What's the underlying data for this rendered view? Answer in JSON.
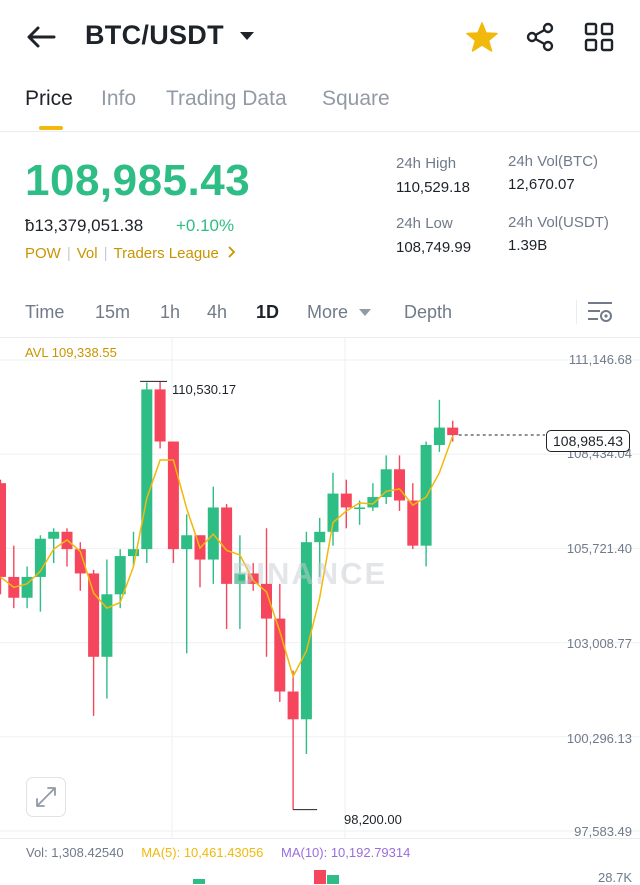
{
  "header": {
    "title": "BTC/USDT",
    "back_icon": "arrow-left-icon",
    "favorite_icon": "star-icon",
    "share_icon": "share-icon",
    "grid_icon": "grid-icon",
    "favorite_color": "#f0b90b"
  },
  "tabs": [
    {
      "label": "Price",
      "active": true
    },
    {
      "label": "Info",
      "active": false
    },
    {
      "label": "Trading Data",
      "active": false
    },
    {
      "label": "Square",
      "active": false
    }
  ],
  "ticker": {
    "last_price": "108,985.43",
    "fiat_price": "ƀ13,379,051.38",
    "change_pct": "+0.10%",
    "price_color": "#2ebd85",
    "tags": [
      "POW",
      "Vol",
      "Traders League"
    ],
    "high_label": "24h High",
    "high_value": "110,529.18",
    "low_label": "24h Low",
    "low_value": "108,749.99",
    "vol_btc_label": "24h Vol(BTC)",
    "vol_btc_value": "12,670.07",
    "vol_usdt_label": "24h Vol(USDT)",
    "vol_usdt_value": "1.39B"
  },
  "intervals": [
    {
      "label": "Time",
      "active": false
    },
    {
      "label": "15m",
      "active": false
    },
    {
      "label": "1h",
      "active": false
    },
    {
      "label": "4h",
      "active": false
    },
    {
      "label": "1D",
      "active": true
    },
    {
      "label": "More",
      "active": false
    },
    {
      "label": "Depth",
      "active": false
    }
  ],
  "chart_settings_icon": "chart-settings-icon",
  "chart_data": {
    "type": "candlestick",
    "avl_label": "AVL 109,338.55",
    "y_ticks": [
      "111,146.68",
      "108,434.04",
      "105,721.40",
      "103,008.77",
      "100,296.13",
      "97,583.49"
    ],
    "y_tick_values": [
      111146.68,
      108434.04,
      105721.4,
      103008.77,
      100296.13,
      97583.49
    ],
    "ylim": [
      97583.49,
      111146.68
    ],
    "high_callout": "110,530.17",
    "high_callout_value": 110530.17,
    "low_callout": "98,200.00",
    "low_callout_value": 98200.0,
    "current_price": "108,985.43",
    "current_value": 108985.43,
    "up_color": "#2ebd85",
    "down_color": "#f6465d",
    "ma_color": "#f0b90b",
    "watermark": "BINANCE",
    "candles": [
      {
        "o": 107600,
        "h": 107700,
        "l": 104400,
        "c": 104900
      },
      {
        "o": 104900,
        "h": 105800,
        "l": 104000,
        "c": 104300
      },
      {
        "o": 104300,
        "h": 105200,
        "l": 104000,
        "c": 104900
      },
      {
        "o": 104900,
        "h": 106100,
        "l": 103900,
        "c": 106000
      },
      {
        "o": 106000,
        "h": 106300,
        "l": 105300,
        "c": 106200
      },
      {
        "o": 106200,
        "h": 106300,
        "l": 105200,
        "c": 105700
      },
      {
        "o": 105700,
        "h": 105900,
        "l": 104500,
        "c": 105000
      },
      {
        "o": 105000,
        "h": 105100,
        "l": 100900,
        "c": 102600
      },
      {
        "o": 102600,
        "h": 105400,
        "l": 101400,
        "c": 104400
      },
      {
        "o": 104400,
        "h": 105700,
        "l": 104000,
        "c": 105500
      },
      {
        "o": 105500,
        "h": 106200,
        "l": 105200,
        "c": 105700
      },
      {
        "o": 105700,
        "h": 110500,
        "l": 105300,
        "c": 110300
      },
      {
        "o": 110300,
        "h": 110530,
        "l": 108600,
        "c": 108800
      },
      {
        "o": 108800,
        "h": 108800,
        "l": 105300,
        "c": 105700
      },
      {
        "o": 105700,
        "h": 106700,
        "l": 102700,
        "c": 106100
      },
      {
        "o": 106100,
        "h": 106100,
        "l": 104600,
        "c": 105400
      },
      {
        "o": 105400,
        "h": 107500,
        "l": 104700,
        "c": 106900
      },
      {
        "o": 106900,
        "h": 107000,
        "l": 103400,
        "c": 104700
      },
      {
        "o": 104700,
        "h": 106100,
        "l": 103400,
        "c": 105000
      },
      {
        "o": 105000,
        "h": 105300,
        "l": 104500,
        "c": 104700
      },
      {
        "o": 104700,
        "h": 106300,
        "l": 102600,
        "c": 103700
      },
      {
        "o": 103700,
        "h": 104700,
        "l": 101300,
        "c": 101600
      },
      {
        "o": 101600,
        "h": 102200,
        "l": 98200,
        "c": 100800
      },
      {
        "o": 100800,
        "h": 106200,
        "l": 99800,
        "c": 105900
      },
      {
        "o": 105900,
        "h": 106600,
        "l": 104900,
        "c": 106200
      },
      {
        "o": 106200,
        "h": 107900,
        "l": 105800,
        "c": 107300
      },
      {
        "o": 107300,
        "h": 107700,
        "l": 106300,
        "c": 106900
      },
      {
        "o": 106900,
        "h": 107100,
        "l": 106400,
        "c": 106900
      },
      {
        "o": 106900,
        "h": 107600,
        "l": 106800,
        "c": 107200
      },
      {
        "o": 107200,
        "h": 108400,
        "l": 107000,
        "c": 108000
      },
      {
        "o": 108000,
        "h": 108400,
        "l": 106800,
        "c": 107100
      },
      {
        "o": 107100,
        "h": 107600,
        "l": 105700,
        "c": 105800
      },
      {
        "o": 105800,
        "h": 108800,
        "l": 105200,
        "c": 108700
      },
      {
        "o": 108700,
        "h": 110000,
        "l": 108500,
        "c": 109200
      },
      {
        "o": 109200,
        "h": 109400,
        "l": 108800,
        "c": 108985
      }
    ]
  },
  "volume": {
    "vol_text": "Vol: 1,308.42540",
    "ma5_text": "MA(5): 10,461.43056",
    "ma10_text": "MA(10): 10,192.79314",
    "axis_label": "28.7K",
    "vol_color": "#707a8a",
    "ma5_color": "#f0b90b",
    "ma10_color": "#9b6ddb"
  },
  "expand_icon": "expand-icon"
}
